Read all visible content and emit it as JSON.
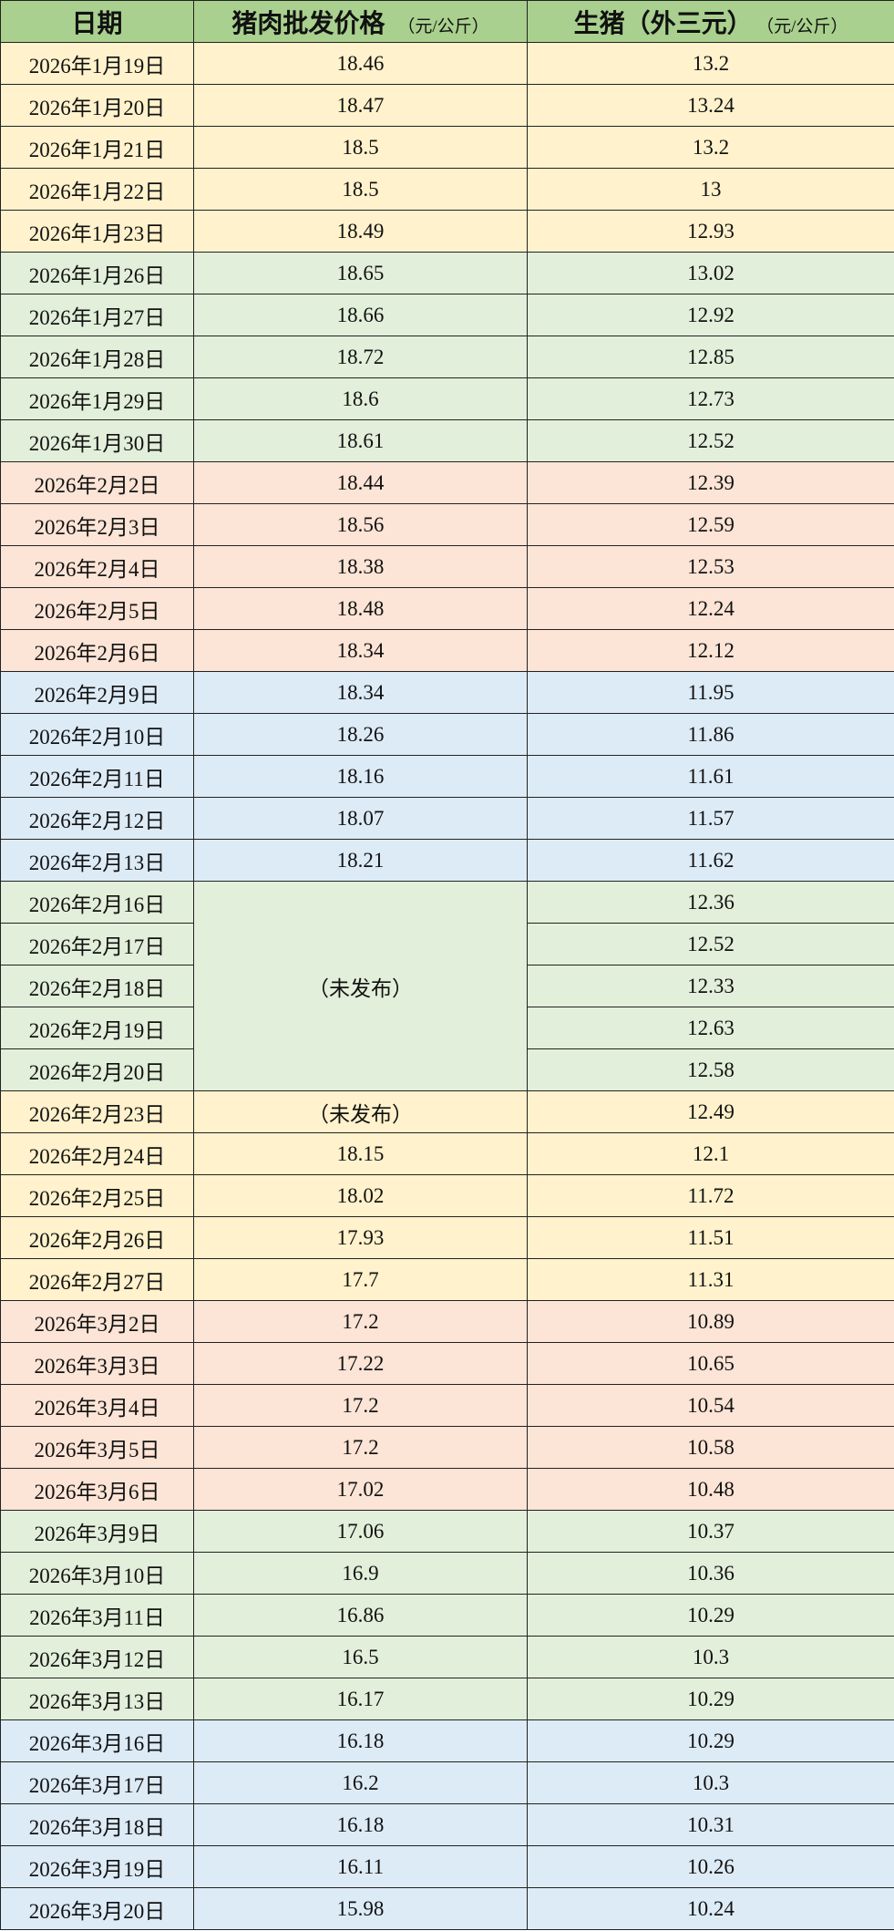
{
  "header": {
    "date": "日期",
    "pork": "猪肉批发价格",
    "pork_unit": "（元/公斤）",
    "hog": "生猪（外三元）",
    "hog_unit": "（元/公斤）"
  },
  "colors": {
    "header": "#a9d08e",
    "yellow": "#fff2cc",
    "green": "#e2efda",
    "pink": "#fce4d6",
    "blue": "#ddebf7"
  },
  "groups": [
    {
      "color": "yellow",
      "rows": [
        {
          "date": "2026年1月19日",
          "pork": "18.46",
          "hog": "13.2"
        },
        {
          "date": "2026年1月20日",
          "pork": "18.47",
          "hog": "13.24"
        },
        {
          "date": "2026年1月21日",
          "pork": "18.5",
          "hog": "13.2"
        },
        {
          "date": "2026年1月22日",
          "pork": "18.5",
          "hog": "13"
        },
        {
          "date": "2026年1月23日",
          "pork": "18.49",
          "hog": "12.93"
        }
      ]
    },
    {
      "color": "green",
      "rows": [
        {
          "date": "2026年1月26日",
          "pork": "18.65",
          "hog": "13.02"
        },
        {
          "date": "2026年1月27日",
          "pork": "18.66",
          "hog": "12.92"
        },
        {
          "date": "2026年1月28日",
          "pork": "18.72",
          "hog": "12.85"
        },
        {
          "date": "2026年1月29日",
          "pork": "18.6",
          "hog": "12.73"
        },
        {
          "date": "2026年1月30日",
          "pork": "18.61",
          "hog": "12.52"
        }
      ]
    },
    {
      "color": "pink",
      "rows": [
        {
          "date": "2026年2月2日",
          "pork": "18.44",
          "hog": "12.39"
        },
        {
          "date": "2026年2月3日",
          "pork": "18.56",
          "hog": "12.59"
        },
        {
          "date": "2026年2月4日",
          "pork": "18.38",
          "hog": "12.53"
        },
        {
          "date": "2026年2月5日",
          "pork": "18.48",
          "hog": "12.24"
        },
        {
          "date": "2026年2月6日",
          "pork": "18.34",
          "hog": "12.12"
        }
      ]
    },
    {
      "color": "blue",
      "rows": [
        {
          "date": "2026年2月9日",
          "pork": "18.34",
          "hog": "11.95"
        },
        {
          "date": "2026年2月10日",
          "pork": "18.26",
          "hog": "11.86"
        },
        {
          "date": "2026年2月11日",
          "pork": "18.16",
          "hog": "11.61"
        },
        {
          "date": "2026年2月12日",
          "pork": "18.07",
          "hog": "11.57"
        },
        {
          "date": "2026年2月13日",
          "pork": "18.21",
          "hog": "11.62"
        }
      ]
    },
    {
      "color": "green",
      "pork_merged": "（未发布）",
      "rows": [
        {
          "date": "2026年2月16日",
          "hog": "12.36"
        },
        {
          "date": "2026年2月17日",
          "hog": "12.52"
        },
        {
          "date": "2026年2月18日",
          "hog": "12.33"
        },
        {
          "date": "2026年2月19日",
          "hog": "12.63"
        },
        {
          "date": "2026年2月20日",
          "hog": "12.58"
        }
      ]
    },
    {
      "color": "yellow",
      "rows": [
        {
          "date": "2026年2月23日",
          "pork": "（未发布）",
          "hog": "12.49"
        },
        {
          "date": "2026年2月24日",
          "pork": "18.15",
          "hog": "12.1"
        },
        {
          "date": "2026年2月25日",
          "pork": "18.02",
          "hog": "11.72"
        },
        {
          "date": "2026年2月26日",
          "pork": "17.93",
          "hog": "11.51"
        },
        {
          "date": "2026年2月27日",
          "pork": "17.7",
          "hog": "11.31"
        }
      ]
    },
    {
      "color": "pink",
      "rows": [
        {
          "date": "2026年3月2日",
          "pork": "17.2",
          "hog": "10.89"
        },
        {
          "date": "2026年3月3日",
          "pork": "17.22",
          "hog": "10.65"
        },
        {
          "date": "2026年3月4日",
          "pork": "17.2",
          "hog": "10.54"
        },
        {
          "date": "2026年3月5日",
          "pork": "17.2",
          "hog": "10.58"
        },
        {
          "date": "2026年3月6日",
          "pork": "17.02",
          "hog": "10.48"
        }
      ]
    },
    {
      "color": "green",
      "rows": [
        {
          "date": "2026年3月9日",
          "pork": "17.06",
          "hog": "10.37"
        },
        {
          "date": "2026年3月10日",
          "pork": "16.9",
          "hog": "10.36"
        },
        {
          "date": "2026年3月11日",
          "pork": "16.86",
          "hog": "10.29"
        },
        {
          "date": "2026年3月12日",
          "pork": "16.5",
          "hog": "10.3"
        },
        {
          "date": "2026年3月13日",
          "pork": "16.17",
          "hog": "10.29"
        }
      ]
    },
    {
      "color": "blue",
      "rows": [
        {
          "date": "2026年3月16日",
          "pork": "16.18",
          "hog": "10.29"
        },
        {
          "date": "2026年3月17日",
          "pork": "16.2",
          "hog": "10.3"
        },
        {
          "date": "2026年3月18日",
          "pork": "16.18",
          "hog": "10.31"
        },
        {
          "date": "2026年3月19日",
          "pork": "16.11",
          "hog": "10.26"
        },
        {
          "date": "2026年3月20日",
          "pork": "15.98",
          "hog": "10.24"
        }
      ]
    }
  ]
}
